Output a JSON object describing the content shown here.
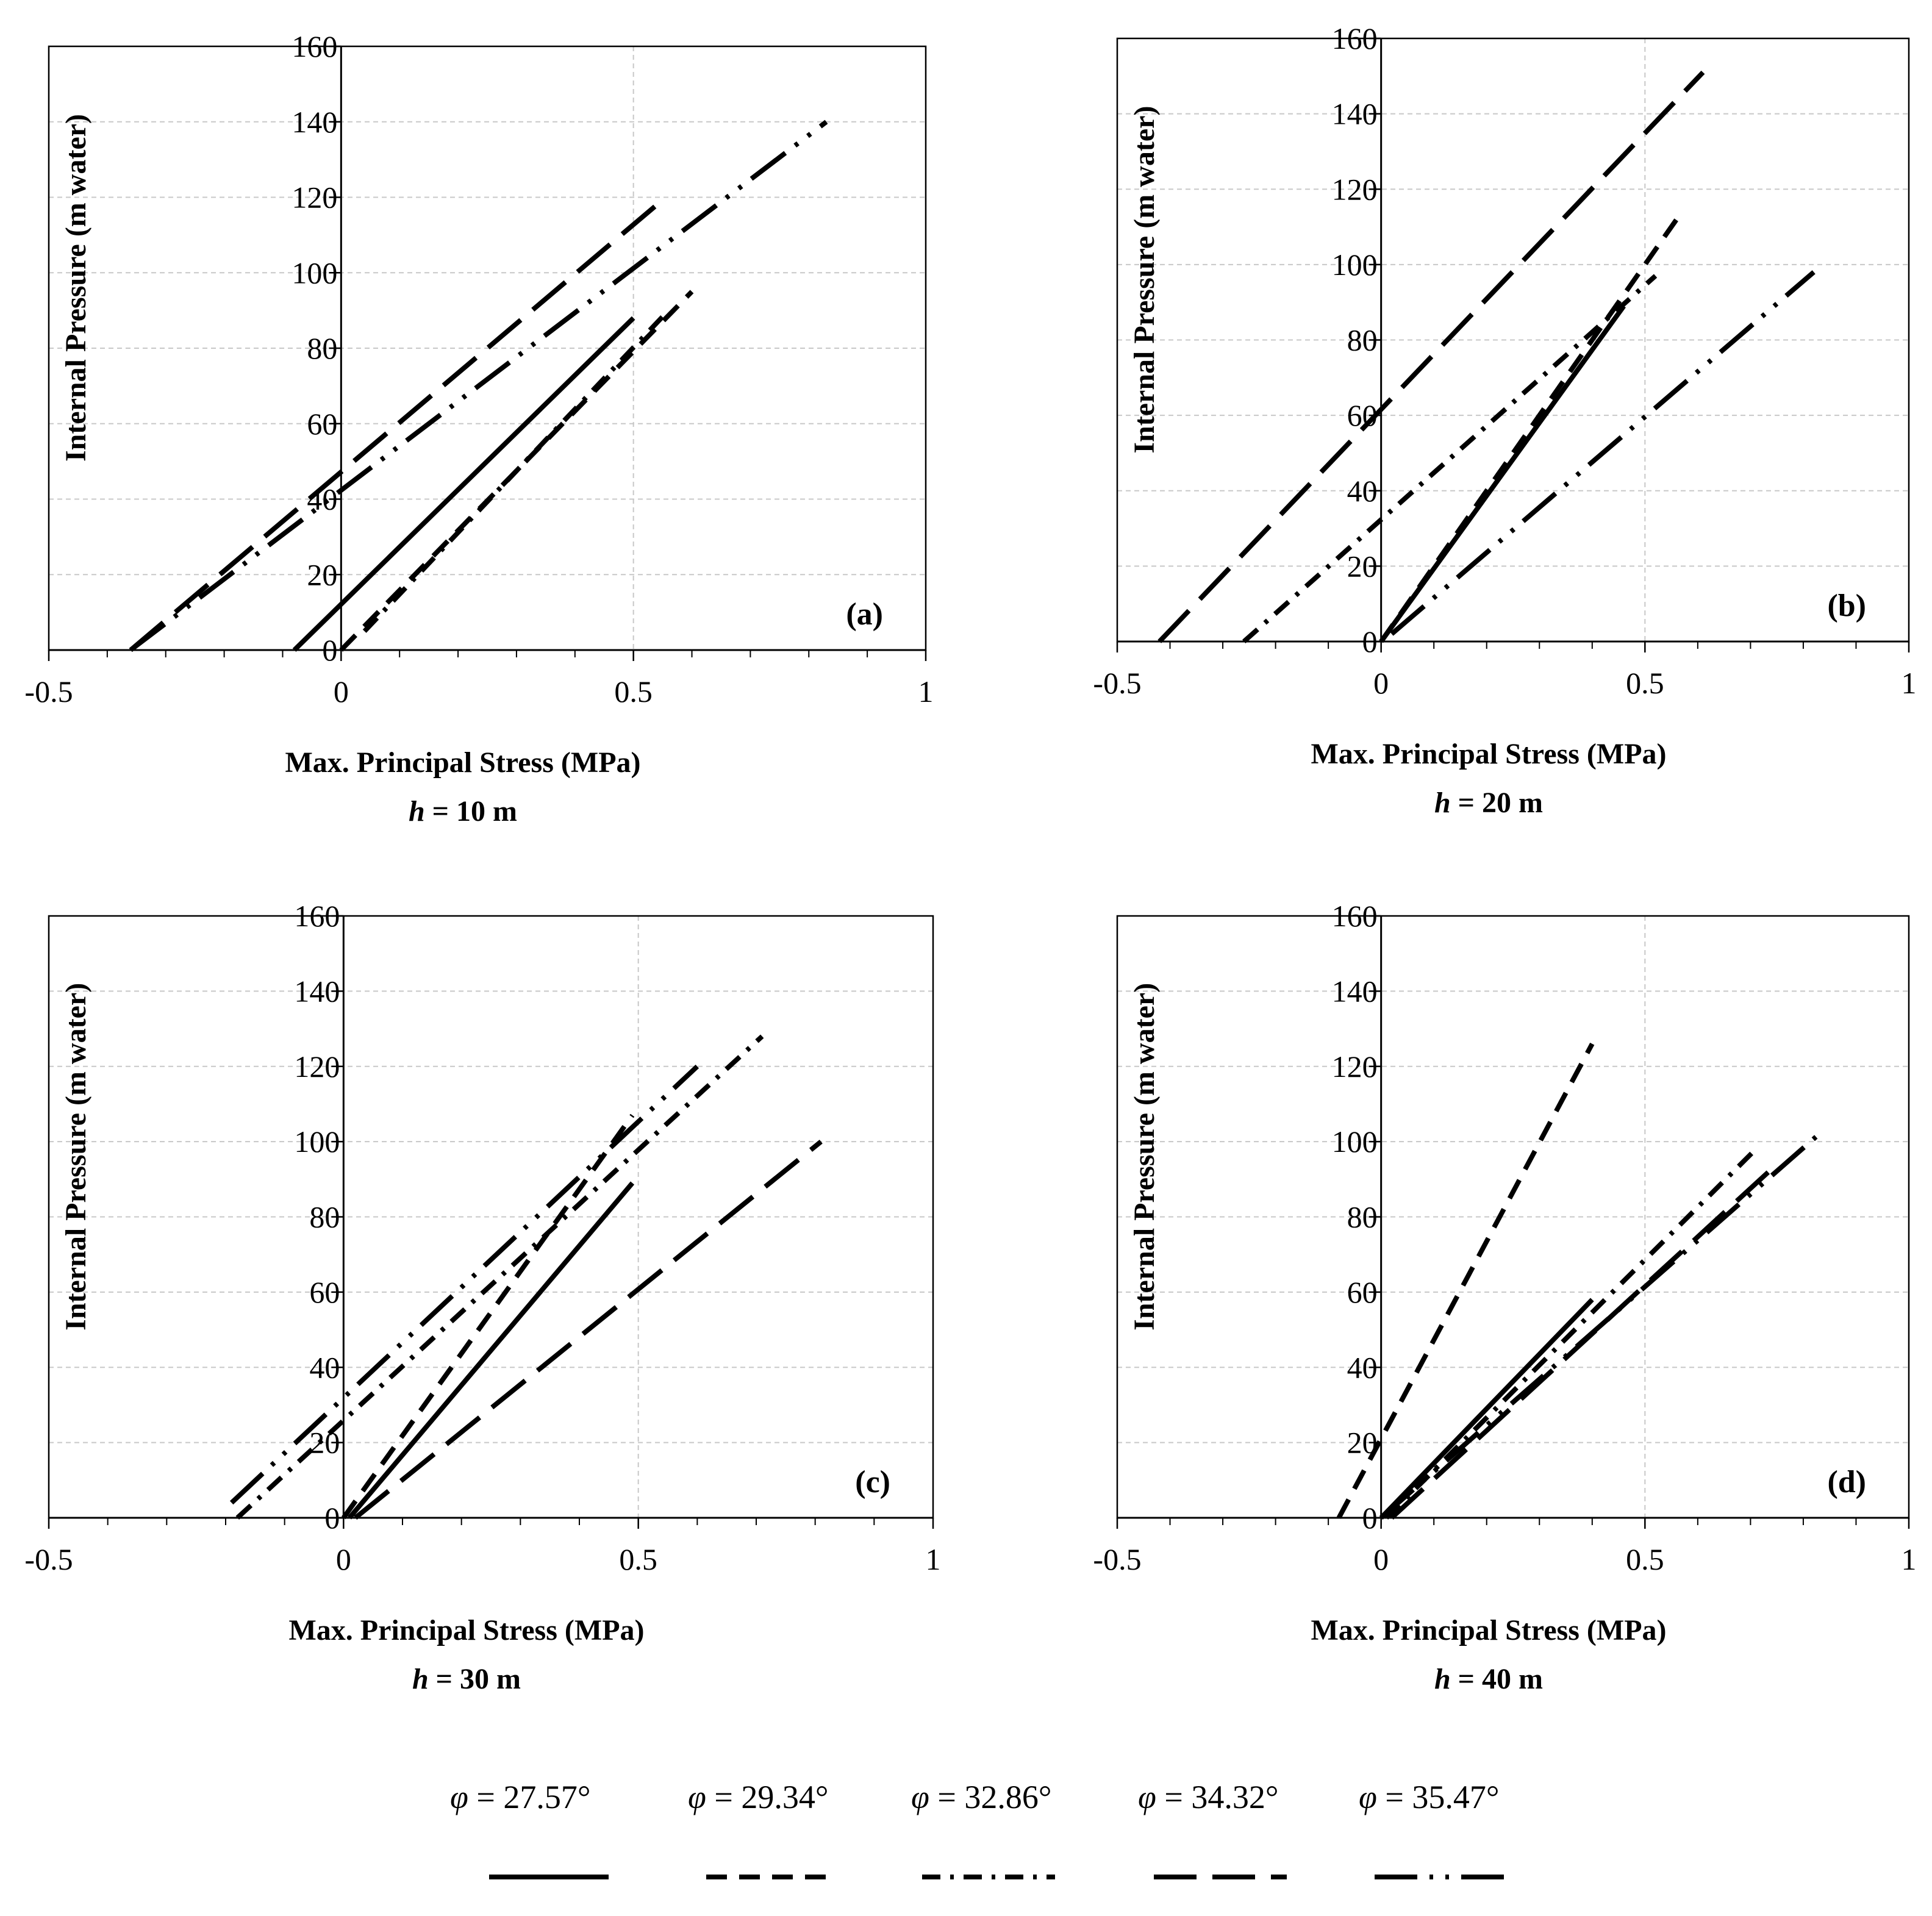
{
  "chart_data": [
    {
      "id": "a",
      "type": "line",
      "tag": "(a)",
      "subtitle_var": "h",
      "subtitle_rest": " = 10 m",
      "xlabel": "Max. Principal Stress (MPa)",
      "ylabel": "Internal Pressure (m water)",
      "xlim": [
        -0.5,
        1
      ],
      "ylim": [
        0,
        160
      ],
      "x_ticks": [
        "-0.5",
        "0",
        "0.5",
        "1"
      ],
      "y_ticks": [
        "0",
        "20",
        "40",
        "60",
        "80",
        "100",
        "120",
        "140",
        "160"
      ],
      "grid": true,
      "series": [
        {
          "name": "φ = 27.57°",
          "style": "solid",
          "x": [
            -0.08,
            0.5
          ],
          "y": [
            0,
            88
          ]
        },
        {
          "name": "φ = 29.34°",
          "style": "dash",
          "x": [
            0.0,
            0.6
          ],
          "y": [
            0,
            95
          ]
        },
        {
          "name": "φ = 32.86°",
          "style": "dashdot",
          "x": [
            0.04,
            0.56
          ],
          "y": [
            5,
            90
          ]
        },
        {
          "name": "φ = 34.32°",
          "style": "longdash",
          "x": [
            -0.36,
            0.54
          ],
          "y": [
            0,
            118
          ]
        },
        {
          "name": "φ = 35.47°",
          "style": "longdashdotdot",
          "x": [
            -0.36,
            0.83
          ],
          "y": [
            0,
            140
          ]
        }
      ]
    },
    {
      "id": "b",
      "type": "line",
      "tag": "(b)",
      "subtitle_var": "h",
      "subtitle_rest": " = 20 m",
      "xlabel": "Max. Principal Stress (MPa)",
      "ylabel": "Internal Pressure (m water)",
      "xlim": [
        -0.5,
        1
      ],
      "ylim": [
        0,
        160
      ],
      "x_ticks": [
        "-0.5",
        "0",
        "0.5",
        "1"
      ],
      "y_ticks": [
        "0",
        "20",
        "40",
        "60",
        "80",
        "100",
        "120",
        "140",
        "160"
      ],
      "grid": true,
      "series": [
        {
          "name": "φ = 27.57°",
          "style": "solid",
          "x": [
            0.0,
            0.46
          ],
          "y": [
            0,
            89
          ]
        },
        {
          "name": "φ = 29.34°",
          "style": "dash",
          "x": [
            0.0,
            0.57
          ],
          "y": [
            0,
            114
          ]
        },
        {
          "name": "φ = 32.86°",
          "style": "dashdot",
          "x": [
            -0.26,
            0.52
          ],
          "y": [
            0,
            97
          ]
        },
        {
          "name": "φ = 34.32°",
          "style": "longdash",
          "x": [
            -0.42,
            0.61
          ],
          "y": [
            0,
            151
          ]
        },
        {
          "name": "φ = 35.47°",
          "style": "longdashdotdot",
          "x": [
            0.02,
            0.82
          ],
          "y": [
            2,
            98
          ]
        }
      ]
    },
    {
      "id": "c",
      "type": "line",
      "tag": "(c)",
      "subtitle_var": "h",
      "subtitle_rest": " = 30 m",
      "xlabel": "Max. Principal Stress (MPa)",
      "ylabel": "Internal Pressure (m water)",
      "xlim": [
        -0.5,
        1
      ],
      "ylim": [
        0,
        160
      ],
      "x_ticks": [
        "-0.5",
        "0",
        "0.5",
        "1"
      ],
      "y_ticks": [
        "0",
        "20",
        "40",
        "60",
        "80",
        "100",
        "120",
        "140",
        "160"
      ],
      "grid": true,
      "series": [
        {
          "name": "φ = 27.57°",
          "style": "solid",
          "x": [
            0.01,
            0.49
          ],
          "y": [
            0,
            89
          ]
        },
        {
          "name": "φ = 29.34°",
          "style": "dash",
          "x": [
            0.0,
            0.49
          ],
          "y": [
            0,
            107
          ]
        },
        {
          "name": "φ = 32.86°",
          "style": "dashdot",
          "x": [
            -0.18,
            0.71
          ],
          "y": [
            0,
            128
          ]
        },
        {
          "name": "φ = 34.32°",
          "style": "longdash",
          "x": [
            0.02,
            0.81
          ],
          "y": [
            0,
            100
          ]
        },
        {
          "name": "φ = 35.47°",
          "style": "longdashdotdot",
          "x": [
            -0.19,
            0.6
          ],
          "y": [
            4,
            120
          ]
        }
      ]
    },
    {
      "id": "d",
      "type": "line",
      "tag": "(d)",
      "subtitle_var": "h",
      "subtitle_rest": " = 40 m",
      "xlabel": "Max. Principal Stress (MPa)",
      "ylabel": "Internal Pressure (m water)",
      "xlim": [
        -0.5,
        1
      ],
      "ylim": [
        0,
        160
      ],
      "x_ticks": [
        "-0.5",
        "0",
        "0.5",
        "1"
      ],
      "y_ticks": [
        "0",
        "20",
        "40",
        "60",
        "80",
        "100",
        "120",
        "140",
        "160"
      ],
      "grid": true,
      "series": [
        {
          "name": "φ = 27.57°",
          "style": "solid",
          "x": [
            0.0,
            0.4
          ],
          "y": [
            0,
            58
          ]
        },
        {
          "name": "φ = 29.34°",
          "style": "dash",
          "x": [
            -0.08,
            0.4
          ],
          "y": [
            0,
            126
          ]
        },
        {
          "name": "φ = 32.86°",
          "style": "dashdot",
          "x": [
            0.01,
            0.71
          ],
          "y": [
            0,
            98
          ]
        },
        {
          "name": "φ = 34.32°",
          "style": "longdash",
          "x": [
            0.02,
            0.75
          ],
          "y": [
            0,
            94
          ]
        },
        {
          "name": "φ = 35.47°",
          "style": "longdashdotdot",
          "x": [
            0.0,
            0.83
          ],
          "y": [
            0,
            102
          ]
        }
      ]
    }
  ],
  "legend": [
    {
      "symbol": "φ",
      "rest": " = 27.57°",
      "style": "solid"
    },
    {
      "symbol": "φ",
      "rest": " = 29.34°",
      "style": "dash"
    },
    {
      "symbol": "φ",
      "rest": " = 32.86°",
      "style": "dashdot"
    },
    {
      "symbol": "φ",
      "rest": " = 34.32°",
      "style": "longdash"
    },
    {
      "symbol": "φ",
      "rest": " = 35.47°",
      "style": "longdashdotdot"
    }
  ]
}
